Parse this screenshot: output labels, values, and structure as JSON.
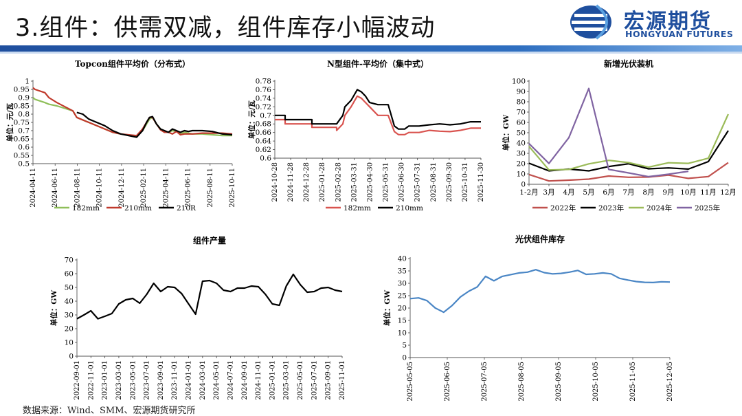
{
  "header": {
    "title": "3.组件：供需双减，组件库存小幅波动",
    "logo_cn": "宏源期货",
    "logo_en": "HONGYUAN FUTURES",
    "bar_color": "#1f4f9e"
  },
  "footer": {
    "source": "数据来源：Wind、SMM、宏源期货研究所"
  },
  "chart_data": [
    {
      "id": "topcon",
      "type": "line",
      "title": "Topcon组件平均价（分布式）",
      "ylabel": "单位：元/瓦",
      "xlabel": "",
      "ylim": [
        0.5,
        1.0
      ],
      "yticks": [
        "0.5",
        "0.55",
        "0.6",
        "0.65",
        "0.7",
        "0.75",
        "0.8",
        "0.85",
        "0.9",
        "0.95",
        "1"
      ],
      "xticks": [
        "2024-04-11",
        "2024-06-11",
        "2024-08-11",
        "2024-10-11",
        "2024-12-11",
        "2025-02-11",
        "2025-04-11",
        "2025-06-11",
        "2025-08-11",
        "2025-10-11"
      ],
      "legend_position": "bottom",
      "series": [
        {
          "name": "182mm",
          "color": "#8fbf5a",
          "x": [
            0,
            0.01,
            0.06,
            0.08,
            0.12,
            0.2,
            0.22,
            0.3,
            0.4,
            0.44,
            0.52,
            0.55,
            0.57,
            0.585,
            0.6,
            0.62,
            0.64,
            0.66,
            0.68,
            0.7,
            0.72,
            0.74,
            0.76,
            0.78,
            0.8,
            0.85,
            0.9,
            0.95,
            1.0
          ],
          "y": [
            0.9,
            0.89,
            0.87,
            0.86,
            0.85,
            0.82,
            0.78,
            0.74,
            0.69,
            0.68,
            0.665,
            0.7,
            0.74,
            0.77,
            0.78,
            0.74,
            0.71,
            0.695,
            0.69,
            0.7,
            0.695,
            0.68,
            0.69,
            0.685,
            0.68,
            0.68,
            0.675,
            0.67,
            0.67
          ]
        },
        {
          "name": "210mm",
          "color": "#c0392b",
          "x": [
            0,
            0.01,
            0.06,
            0.08,
            0.12,
            0.2,
            0.22,
            0.3,
            0.4,
            0.44,
            0.52,
            0.55,
            0.57,
            0.585,
            0.6,
            0.62,
            0.64,
            0.66,
            0.68,
            0.7,
            0.72,
            0.74,
            0.76,
            0.78,
            0.8,
            0.85,
            0.9,
            0.95,
            1.0
          ],
          "y": [
            0.96,
            0.95,
            0.93,
            0.9,
            0.87,
            0.82,
            0.78,
            0.74,
            0.69,
            0.68,
            0.67,
            0.71,
            0.75,
            0.78,
            0.78,
            0.74,
            0.705,
            0.69,
            0.69,
            0.68,
            0.695,
            0.675,
            0.68,
            0.68,
            0.68,
            0.685,
            0.685,
            0.685,
            0.68
          ]
        },
        {
          "name": "210R",
          "color": "#000000",
          "x": [
            0.22,
            0.25,
            0.28,
            0.32,
            0.36,
            0.4,
            0.44,
            0.48,
            0.52,
            0.55,
            0.57,
            0.585,
            0.6,
            0.62,
            0.64,
            0.66,
            0.68,
            0.7,
            0.72,
            0.74,
            0.76,
            0.78,
            0.8,
            0.85,
            0.9,
            0.95,
            1.0
          ],
          "y": [
            0.81,
            0.8,
            0.77,
            0.75,
            0.73,
            0.7,
            0.68,
            0.67,
            0.66,
            0.7,
            0.75,
            0.78,
            0.785,
            0.74,
            0.71,
            0.7,
            0.69,
            0.71,
            0.7,
            0.69,
            0.7,
            0.695,
            0.7,
            0.7,
            0.695,
            0.68,
            0.675
          ]
        }
      ]
    },
    {
      "id": "ntype",
      "type": "line",
      "title": "N型组件-平均价（集中式）",
      "ylabel": "单位：元/瓦",
      "xlabel": "",
      "ylim": [
        0.6,
        0.78
      ],
      "yticks": [
        "0.6",
        "0.62",
        "0.64",
        "0.66",
        "0.68",
        "0.7",
        "0.72",
        "0.74",
        "0.76",
        "0.78"
      ],
      "xticks": [
        "2024-10-28",
        "2024-11-28",
        "2024-12-28",
        "2025-01-28",
        "2025-02-28",
        "2025-03-31",
        "2025-04-30",
        "2025-05-31",
        "2025-06-30",
        "2025-07-31",
        "2025-08-31",
        "2025-09-30",
        "2025-10-31",
        "2025-11-30"
      ],
      "legend_position": "bottom",
      "series": [
        {
          "name": "182mm",
          "color": "#d9534f",
          "x": [
            0,
            0.05,
            0.05,
            0.18,
            0.18,
            0.3,
            0.3,
            0.33,
            0.34,
            0.37,
            0.4,
            0.42,
            0.44,
            0.46,
            0.5,
            0.55,
            0.58,
            0.6,
            0.63,
            0.65,
            0.7,
            0.75,
            0.8,
            0.85,
            0.9,
            0.95,
            1.0
          ],
          "y": [
            0.69,
            0.69,
            0.68,
            0.68,
            0.672,
            0.672,
            0.665,
            0.68,
            0.7,
            0.72,
            0.745,
            0.74,
            0.73,
            0.72,
            0.7,
            0.7,
            0.662,
            0.655,
            0.655,
            0.66,
            0.66,
            0.665,
            0.663,
            0.662,
            0.665,
            0.67,
            0.67
          ]
        },
        {
          "name": "210mm",
          "color": "#000000",
          "x": [
            0,
            0.05,
            0.05,
            0.18,
            0.18,
            0.3,
            0.3,
            0.33,
            0.34,
            0.37,
            0.4,
            0.42,
            0.44,
            0.46,
            0.5,
            0.55,
            0.58,
            0.6,
            0.63,
            0.65,
            0.7,
            0.75,
            0.8,
            0.85,
            0.9,
            0.95,
            1.0
          ],
          "y": [
            0.7,
            0.7,
            0.69,
            0.69,
            0.68,
            0.68,
            0.68,
            0.7,
            0.72,
            0.735,
            0.76,
            0.755,
            0.745,
            0.73,
            0.725,
            0.725,
            0.675,
            0.668,
            0.668,
            0.675,
            0.675,
            0.678,
            0.68,
            0.678,
            0.68,
            0.685,
            0.685
          ]
        }
      ]
    },
    {
      "id": "installs",
      "type": "line",
      "title": "新增光伏装机",
      "ylabel": "单位：GW",
      "xlabel": "",
      "ylim": [
        0,
        100
      ],
      "yticks": [
        "0",
        "10",
        "20",
        "30",
        "40",
        "50",
        "60",
        "70",
        "80",
        "90",
        "100"
      ],
      "categories": [
        "1-2月",
        "3月",
        "4月",
        "5月",
        "6月",
        "7月",
        "8月",
        "9月",
        "10月",
        "11月",
        "12月"
      ],
      "legend_position": "bottom",
      "series": [
        {
          "name": "2022年",
          "color": "#c0504d",
          "values": [
            9.5,
            3.2,
            4,
            5,
            8,
            6.8,
            7,
            8.9,
            5.7,
            7.5,
            21
          ]
        },
        {
          "name": "2023年",
          "color": "#000000",
          "values": [
            20.4,
            13,
            14.7,
            13,
            17.2,
            19.9,
            15,
            15.9,
            14.7,
            22,
            52
          ]
        },
        {
          "name": "2024年",
          "color": "#9bbb59",
          "values": [
            36.7,
            13.9,
            14.4,
            19.8,
            23.2,
            21,
            16.6,
            20.9,
            20.3,
            25.3,
            68
          ]
        },
        {
          "name": "2025年",
          "color": "#8064a2",
          "values": [
            39.5,
            20.2,
            45.2,
            92.9,
            14.4,
            11,
            7.4,
            9.7,
            12.6,
            null,
            null
          ]
        }
      ]
    },
    {
      "id": "production",
      "type": "line",
      "title": "组件产量",
      "ylabel": "单位：GW",
      "xlabel": "",
      "ylim": [
        0,
        70
      ],
      "yticks": [
        "0",
        "10",
        "20",
        "30",
        "40",
        "50",
        "60",
        "70"
      ],
      "xticks": [
        "2022-09-01",
        "2022-11-01",
        "2023-01-01",
        "2023-03-01",
        "2023-05-01",
        "2023-07-01",
        "2023-09-01",
        "2023-11-01",
        "2024-01-01",
        "2024-03-01",
        "2024-05-01",
        "2024-07-01",
        "2024-09-01",
        "2024-11-01",
        "2025-01-01",
        "2025-03-01",
        "2025-05-01",
        "2025-07-01",
        "2025-09-01",
        "2025-11-01"
      ],
      "series": [
        {
          "name": "",
          "color": "#000000",
          "values": [
            27.2,
            30,
            33,
            27.2,
            29,
            31,
            38,
            41,
            42,
            38.5,
            45,
            53,
            47,
            50.5,
            50,
            45.5,
            38,
            30.5,
            54.5,
            55,
            53,
            48,
            47,
            49.5,
            49.5,
            51,
            50.5,
            45,
            38,
            37,
            51,
            59.5,
            52,
            46.5,
            47,
            49.5,
            50,
            48,
            47
          ]
        }
      ]
    },
    {
      "id": "inventory",
      "type": "line",
      "title": "光伏组件库存",
      "ylabel": "单位：GW",
      "xlabel": "",
      "ylim": [
        0,
        40
      ],
      "yticks": [
        "0",
        "5",
        "10",
        "15",
        "20",
        "25",
        "30",
        "35",
        "40"
      ],
      "xticks": [
        "2025-05-05",
        "2025-06-05",
        "2025-07-05",
        "2025-08-05",
        "2025-09-05",
        "2025-10-05",
        "2025-11-05",
        "2025-12-05"
      ],
      "series": [
        {
          "name": "",
          "color": "#4a86c5",
          "values": [
            23.8,
            24.1,
            23,
            20,
            18.3,
            21,
            24.5,
            26.8,
            28.5,
            32.8,
            31,
            32.8,
            33.5,
            34.2,
            34.5,
            35.5,
            34.3,
            33.8,
            34,
            34.5,
            35.2,
            33.6,
            33.8,
            34.2,
            33.8,
            32,
            31.3,
            30.7,
            30.4,
            30.3,
            30.6,
            30.5
          ]
        }
      ]
    }
  ]
}
